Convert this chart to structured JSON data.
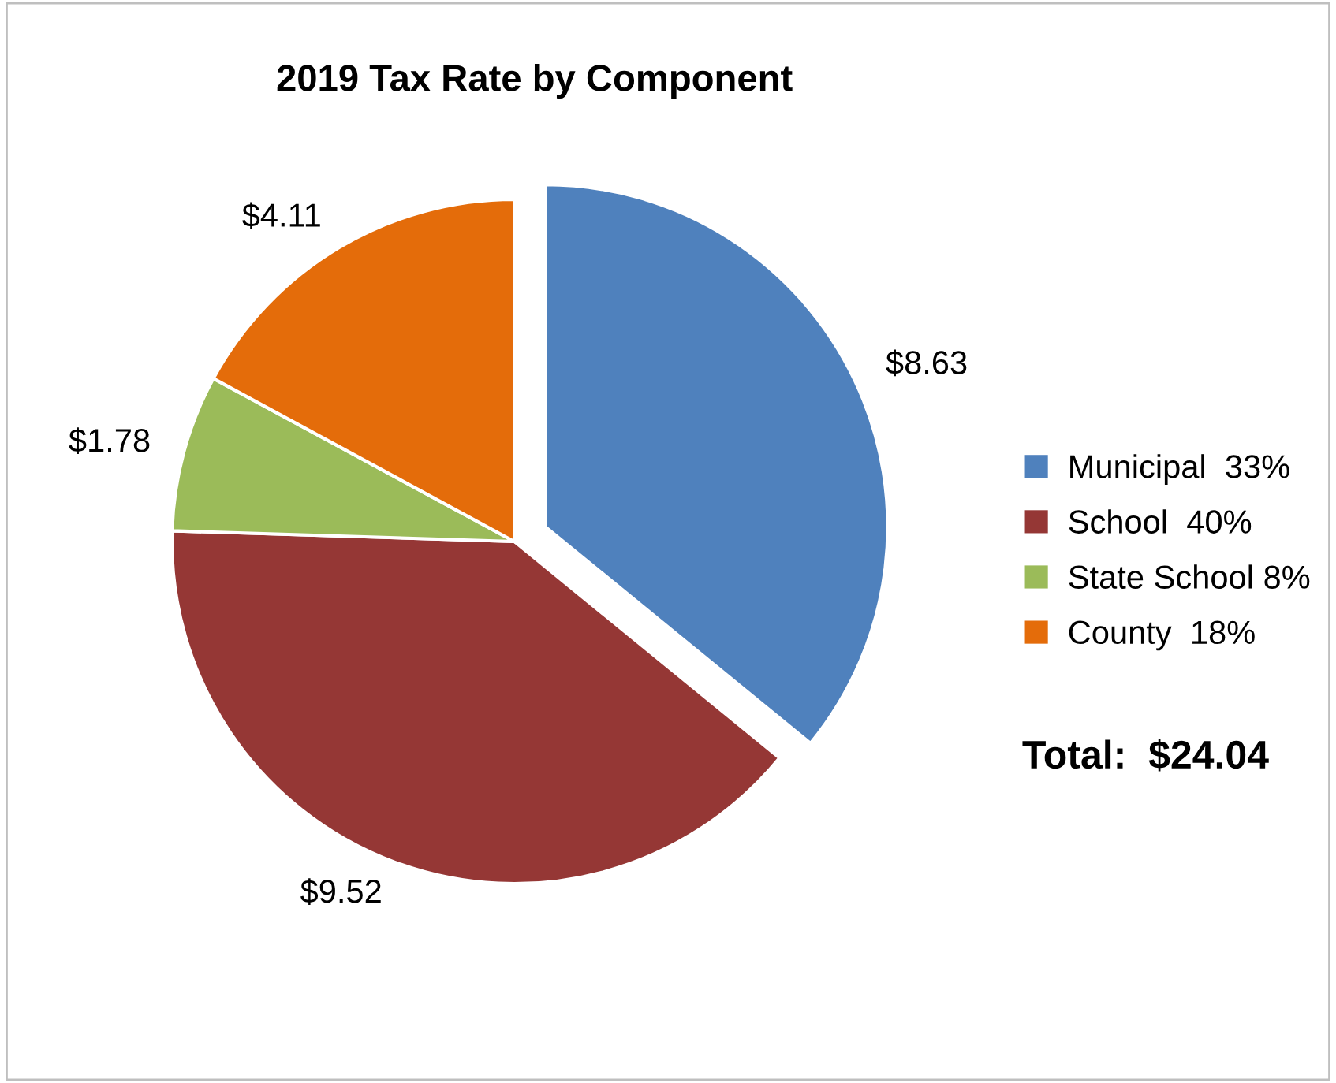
{
  "chart_data": {
    "type": "pie",
    "title": "2019 Tax Rate by Component",
    "categories": [
      "Municipal  33%",
      "School  40%",
      "State School 8%",
      "County  18%"
    ],
    "values": [
      8.63,
      9.52,
      1.78,
      4.11
    ],
    "value_labels": [
      "$8.63",
      "$9.52",
      "$1.78",
      "$4.11"
    ],
    "colors": [
      "#4f81bd",
      "#953735",
      "#9bbb59",
      "#e46c0a"
    ],
    "legend": "right",
    "annotations": [
      "Total:  $24.04"
    ]
  }
}
